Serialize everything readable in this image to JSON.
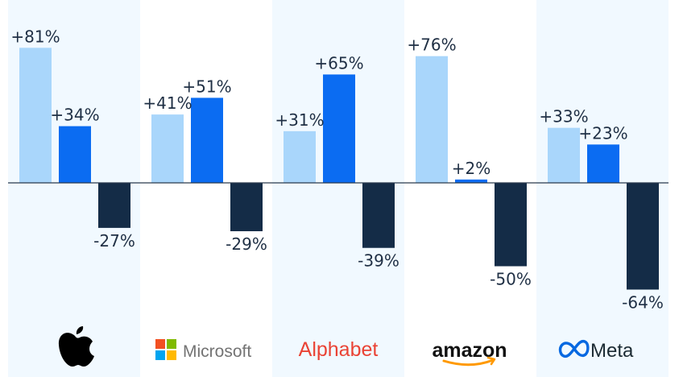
{
  "chart_data": {
    "type": "bar",
    "title": "",
    "xlabel": "",
    "ylabel": "",
    "ylim": [
      -64,
      81
    ],
    "categories": [
      "Apple",
      "Microsoft",
      "Alphabet",
      "Amazon",
      "Meta"
    ],
    "series": [
      {
        "color": "#a9d6fb",
        "values": [
          81,
          41,
          31,
          76,
          33
        ]
      },
      {
        "color": "#0b6cf2",
        "values": [
          34,
          51,
          65,
          2,
          23
        ]
      },
      {
        "color": "#142c47",
        "values": [
          -27,
          -29,
          -39,
          -50,
          -64
        ]
      }
    ],
    "data_labels": [
      [
        "+81%",
        "+41%",
        "+31%",
        "+76%",
        "+33%"
      ],
      [
        "+34%",
        "+51%",
        "+65%",
        "+2%",
        "+23%"
      ],
      [
        "-27%",
        "-29%",
        "-39%",
        "-50%",
        "-64%"
      ]
    ],
    "band_color": "#f1f9ff",
    "axis_color": "#2a3a4e",
    "label_color": "#1f2f44"
  },
  "logos": [
    {
      "name": "apple-logo",
      "text": "",
      "icon": "apple-icon",
      "color": "#000000"
    },
    {
      "name": "microsoft-logo",
      "text": "Microsoft",
      "icon": "microsoft-squares-icon",
      "color": "#737373"
    },
    {
      "name": "alphabet-logo",
      "text": "Alphabet",
      "icon": "",
      "color": "#ea4335"
    },
    {
      "name": "amazon-logo",
      "text": "amazon",
      "icon": "amazon-smile-icon",
      "color": "#111111"
    },
    {
      "name": "meta-logo",
      "text": "Meta",
      "icon": "meta-infinity-icon",
      "color": "#1c2b33"
    }
  ]
}
